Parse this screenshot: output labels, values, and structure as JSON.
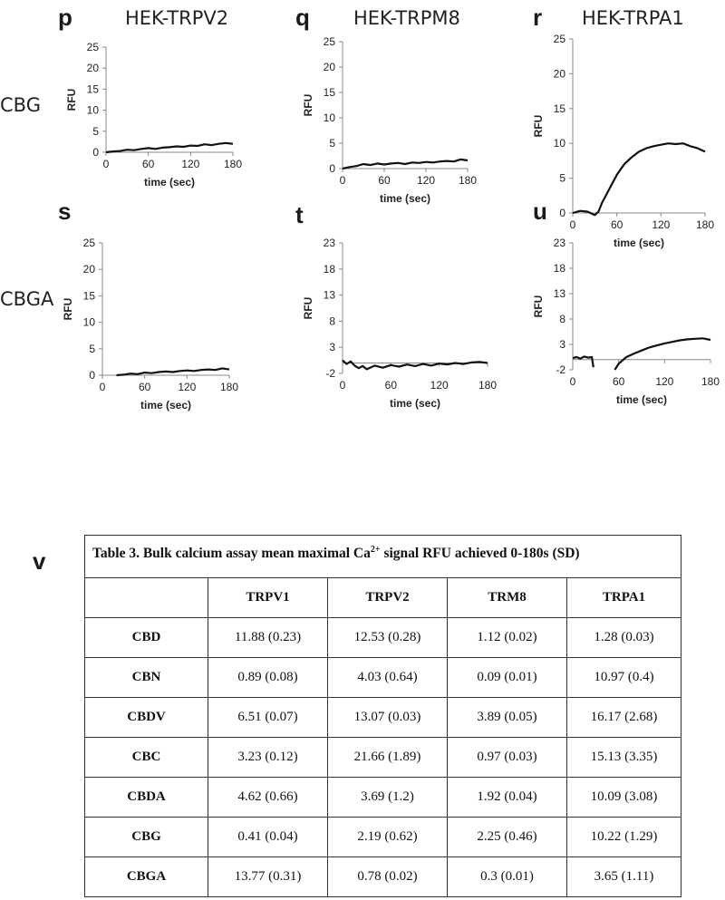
{
  "panels": {
    "p": {
      "letter": "p",
      "title": "HEK-TRPV2"
    },
    "q": {
      "letter": "q",
      "title": "HEK-TRPM8"
    },
    "r": {
      "letter": "r",
      "title": "HEK-TRPA1"
    },
    "s": {
      "letter": "s",
      "title": ""
    },
    "t": {
      "letter": "t",
      "title": ""
    },
    "u": {
      "letter": "u",
      "title": ""
    },
    "v": {
      "letter": "v"
    }
  },
  "row_labels": {
    "top": "CBG",
    "bottom": "CBGA"
  },
  "chart_data": [
    {
      "id": "p",
      "type": "line",
      "xlabel": "time (sec)",
      "ylabel": "RFU",
      "xticks": [
        0,
        60,
        120,
        180
      ],
      "yticks": [
        0,
        5,
        10,
        15,
        20,
        25
      ],
      "xlim": [
        0,
        180
      ],
      "ylim": [
        0,
        25
      ],
      "series": [
        {
          "x": [
            0,
            10,
            20,
            30,
            40,
            50,
            60,
            70,
            80,
            90,
            100,
            110,
            120,
            130,
            140,
            150,
            160,
            170,
            180
          ],
          "y": [
            0,
            0.2,
            0.3,
            0.6,
            0.5,
            0.8,
            1.0,
            0.8,
            1.1,
            1.2,
            1.4,
            1.3,
            1.6,
            1.5,
            1.9,
            1.7,
            2.0,
            2.2,
            2.0
          ]
        }
      ]
    },
    {
      "id": "q",
      "type": "line",
      "xlabel": "time (sec)",
      "ylabel": "RFU",
      "xticks": [
        0,
        60,
        120,
        180
      ],
      "yticks": [
        0,
        5,
        10,
        15,
        20,
        25
      ],
      "xlim": [
        0,
        180
      ],
      "ylim": [
        0,
        25
      ],
      "series": [
        {
          "x": [
            0,
            10,
            20,
            30,
            40,
            50,
            60,
            70,
            80,
            90,
            100,
            110,
            120,
            130,
            140,
            150,
            160,
            170,
            180
          ],
          "y": [
            0,
            0.3,
            0.5,
            0.9,
            0.7,
            1.0,
            0.8,
            1.0,
            1.1,
            0.9,
            1.2,
            1.1,
            1.3,
            1.2,
            1.4,
            1.5,
            1.4,
            1.8,
            1.6
          ]
        }
      ]
    },
    {
      "id": "r",
      "type": "line",
      "xlabel": "time (sec)",
      "ylabel": "RFU",
      "xticks": [
        0,
        60,
        120,
        180
      ],
      "yticks": [
        0,
        5,
        10,
        15,
        20,
        25
      ],
      "xlim": [
        0,
        180
      ],
      "ylim": [
        0,
        25
      ],
      "series": [
        {
          "x": [
            0,
            10,
            20,
            30,
            35,
            40,
            50,
            60,
            70,
            80,
            90,
            100,
            110,
            120,
            130,
            140,
            150,
            160,
            170,
            180
          ],
          "y": [
            0,
            0.3,
            0.2,
            -0.3,
            0.2,
            1.5,
            3.5,
            5.5,
            7.0,
            8.0,
            8.8,
            9.3,
            9.6,
            9.8,
            10.0,
            9.9,
            10.0,
            9.6,
            9.3,
            8.8
          ]
        }
      ]
    },
    {
      "id": "s",
      "type": "line",
      "xlabel": "time (sec)",
      "ylabel": "RFU",
      "xticks": [
        0,
        60,
        120,
        180
      ],
      "yticks": [
        0,
        5,
        10,
        15,
        20,
        25
      ],
      "xlim": [
        0,
        180
      ],
      "ylim": [
        0,
        25
      ],
      "series": [
        {
          "x": [
            20,
            30,
            40,
            50,
            60,
            70,
            80,
            90,
            100,
            110,
            120,
            130,
            140,
            150,
            160,
            170,
            180
          ],
          "y": [
            0,
            0.1,
            0.3,
            0.2,
            0.5,
            0.4,
            0.6,
            0.7,
            0.6,
            0.8,
            0.9,
            0.8,
            1.0,
            1.1,
            1.0,
            1.3,
            1.1
          ]
        }
      ]
    },
    {
      "id": "t",
      "type": "line",
      "xlabel": "time (sec)",
      "ylabel": "RFU",
      "xticks": [
        0,
        60,
        120,
        180
      ],
      "yticks": [
        -2,
        3,
        8,
        13,
        18,
        23
      ],
      "xlim": [
        0,
        180
      ],
      "ylim": [
        -2,
        23
      ],
      "series": [
        {
          "x": [
            0,
            5,
            10,
            15,
            20,
            25,
            30,
            40,
            50,
            60,
            70,
            80,
            90,
            100,
            110,
            120,
            130,
            140,
            150,
            160,
            170,
            180
          ],
          "y": [
            0.5,
            -0.2,
            0.3,
            -0.5,
            -1.0,
            -0.6,
            -1.2,
            -0.5,
            -0.9,
            -0.4,
            -0.7,
            -0.3,
            -0.6,
            -0.2,
            -0.5,
            -0.1,
            -0.3,
            0.0,
            -0.2,
            0.1,
            0.2,
            0.0
          ]
        }
      ]
    },
    {
      "id": "u",
      "type": "line",
      "xlabel": "time (sec)",
      "ylabel": "RFU",
      "xticks": [
        0,
        60,
        120,
        180
      ],
      "yticks": [
        -2,
        3,
        8,
        13,
        18,
        23
      ],
      "xlim": [
        0,
        180
      ],
      "ylim": [
        -2,
        23
      ],
      "series": [
        {
          "x": [
            0,
            5,
            10,
            15,
            20,
            25,
            27
          ],
          "y": [
            0.3,
            0.5,
            0.2,
            0.6,
            0.4,
            0.5,
            -1.5
          ]
        },
        {
          "x": [
            55,
            60,
            70,
            80,
            90,
            100,
            110,
            120,
            130,
            140,
            150,
            160,
            170,
            180
          ],
          "y": [
            -2,
            -0.8,
            0.5,
            1.2,
            1.8,
            2.4,
            2.8,
            3.2,
            3.5,
            3.8,
            4.0,
            4.1,
            4.2,
            3.9
          ]
        }
      ]
    }
  ],
  "table": {
    "caption_pre": "Table 3. Bulk calcium assay mean maximal Ca",
    "caption_sup": "2+",
    "caption_post": " signal RFU achieved 0-180s (SD)",
    "headers": [
      "",
      "TRPV1",
      "TRPV2",
      "TRM8",
      "TRPA1"
    ],
    "rows": [
      [
        "CBD",
        "11.88 (0.23)",
        "12.53 (0.28)",
        "1.12 (0.02)",
        "1.28 (0.03)"
      ],
      [
        "CBN",
        "0.89 (0.08)",
        "4.03 (0.64)",
        "0.09 (0.01)",
        "10.97 (0.4)"
      ],
      [
        "CBDV",
        "6.51 (0.07)",
        "13.07 (0.03)",
        "3.89 (0.05)",
        "16.17 (2.68)"
      ],
      [
        "CBC",
        "3.23 (0.12)",
        "21.66 (1.89)",
        "0.97 (0.03)",
        "15.13 (3.35)"
      ],
      [
        "CBDA",
        "4.62 (0.66)",
        "3.69 (1.2)",
        "1.92 (0.04)",
        "10.09 (3.08)"
      ],
      [
        "CBG",
        "0.41 (0.04)",
        "2.19 (0.62)",
        "2.25 (0.46)",
        "10.22 (1.29)"
      ],
      [
        "CBGA",
        "13.77 (0.31)",
        "0.78 (0.02)",
        "0.3 (0.01)",
        "3.65 (1.11)"
      ]
    ]
  }
}
